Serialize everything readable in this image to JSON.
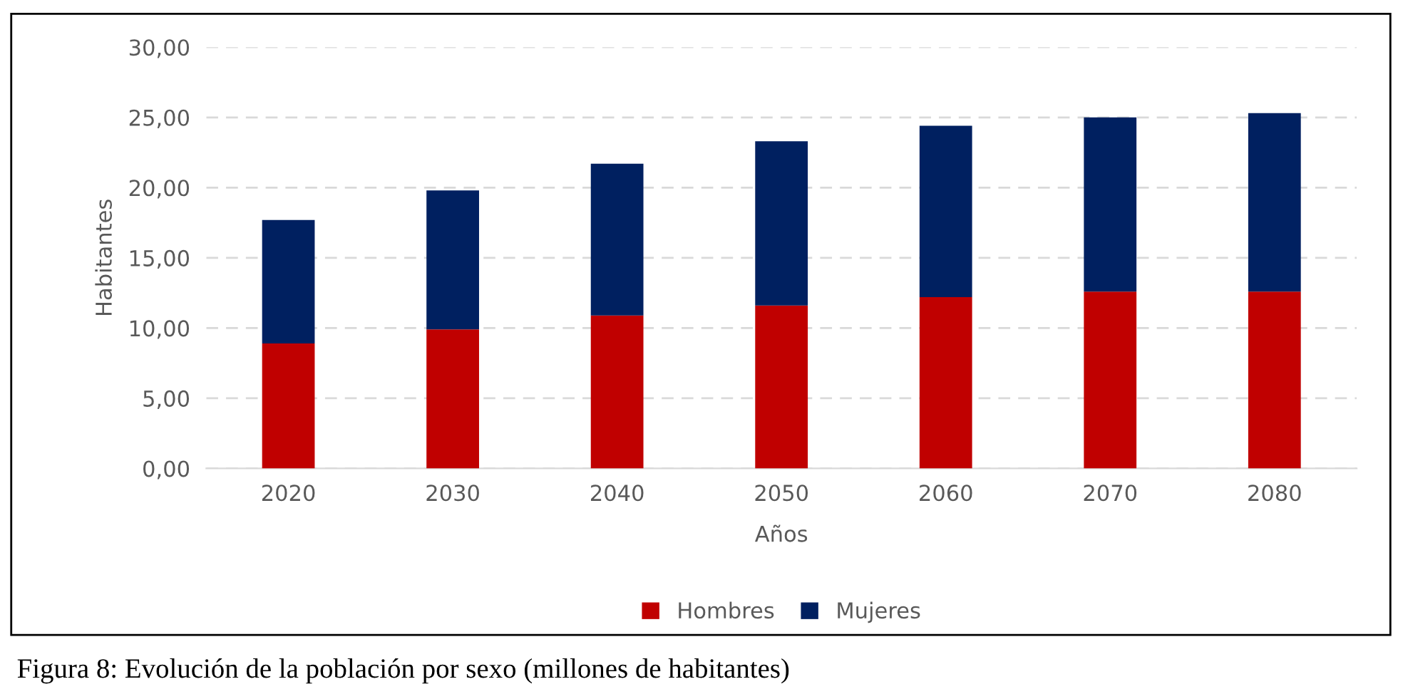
{
  "chart_data": {
    "type": "bar",
    "stacked": true,
    "xlabel": "Años",
    "ylabel": "Habitantes",
    "categories": [
      "2020",
      "2030",
      "2040",
      "2050",
      "2060",
      "2070",
      "2080"
    ],
    "series": [
      {
        "name": "Hombres",
        "color": "#c00000",
        "values": [
          8.9,
          9.9,
          10.9,
          11.6,
          12.2,
          12.6,
          12.6
        ]
      },
      {
        "name": "Mujeres",
        "color": "#002060",
        "values": [
          8.8,
          9.9,
          10.8,
          11.7,
          12.2,
          12.4,
          12.7
        ]
      }
    ],
    "ylim": [
      0,
      30
    ],
    "yticks": [
      {
        "value": 0,
        "label": "0,00"
      },
      {
        "value": 5,
        "label": "5,00"
      },
      {
        "value": 10,
        "label": "10,00"
      },
      {
        "value": 15,
        "label": "15,00"
      },
      {
        "value": 20,
        "label": "20,00"
      },
      {
        "value": 25,
        "label": "25,00"
      },
      {
        "value": 30,
        "label": "30,00"
      }
    ],
    "grid": "y",
    "legend": "bottom",
    "annotations": [
      "Figura 8: Evolución de la población por sexo (millones de habitantes)"
    ]
  }
}
